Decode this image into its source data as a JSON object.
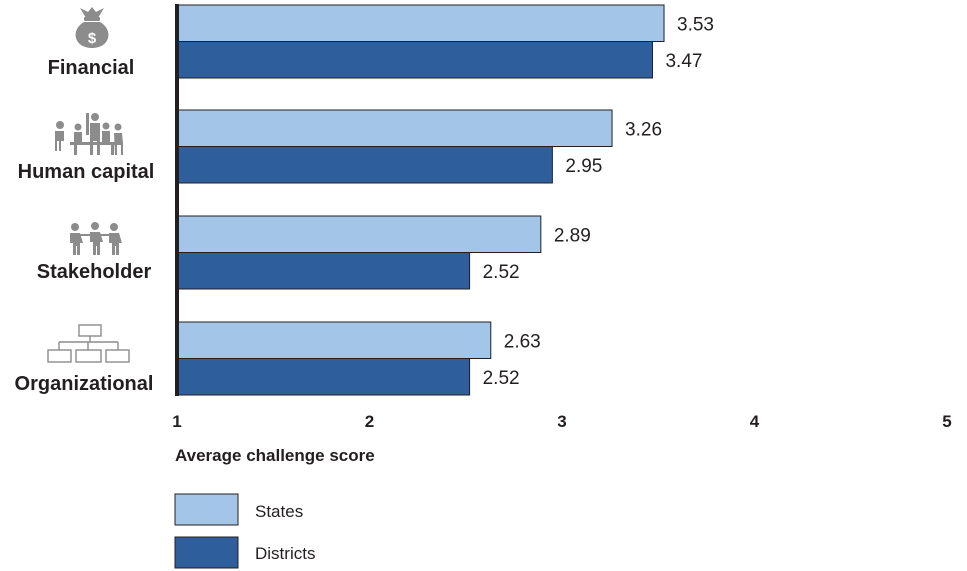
{
  "chart_data": {
    "type": "bar",
    "orientation": "horizontal",
    "categories": [
      "Financial",
      "Human capital",
      "Stakeholder",
      "Organizational"
    ],
    "series": [
      {
        "name": "States",
        "values": [
          3.53,
          3.26,
          2.89,
          2.63
        ],
        "color": "#a3c6e8"
      },
      {
        "name": "Districts",
        "values": [
          3.47,
          2.95,
          2.52,
          2.52
        ],
        "color": "#2f5e9c"
      }
    ],
    "value_labels": {
      "States": [
        "3.53",
        "3.26",
        "2.89",
        "2.63"
      ],
      "Districts": [
        "3.47",
        "2.95",
        "2.52",
        "2.52"
      ]
    },
    "category_icons": [
      "money-bag-icon",
      "meeting-people-icon",
      "people-group-icon",
      "org-chart-icon"
    ],
    "xlim": [
      1,
      5
    ],
    "xticks": [
      "1",
      "2",
      "3",
      "4",
      "5"
    ],
    "xlabel": "Average challenge score",
    "ylabel": "",
    "title": "",
    "grid": false,
    "legend_position": "bottom-left"
  }
}
